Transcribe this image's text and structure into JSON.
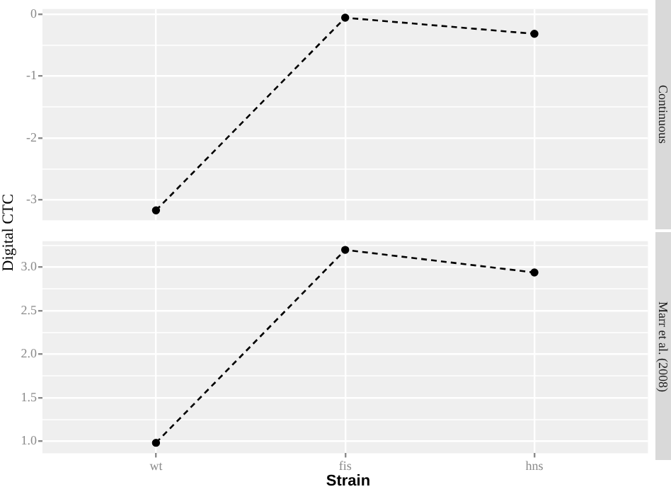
{
  "chart_data": [
    {
      "type": "line",
      "y2label": "Continuous",
      "ylabel": "Digital CTC",
      "categories": [
        null,
        null,
        null
      ],
      "series": [
        {
          "color": "#000000",
          "values": [
            -3.17,
            -0.06,
            -0.32
          ]
        }
      ],
      "ylim": [
        -3.33,
        0.08
      ],
      "yticks": [
        {
          "value": -3,
          "label": "-3"
        },
        {
          "value": -2.5,
          "label": null
        },
        {
          "value": -2,
          "label": "-2"
        },
        {
          "value": -1.5,
          "label": null
        },
        {
          "value": -1,
          "label": "-1"
        },
        {
          "value": -0.5,
          "label": null
        },
        {
          "value": 0,
          "label": "0"
        }
      ],
      "grid": true,
      "legend": false,
      "marker": "circle",
      "line_style": "dashed",
      "tick_labels": "y"
    },
    {
      "type": "line",
      "y2label": "Marr et al. (2008)",
      "xlabel": "Strain",
      "categories": [
        "wt",
        "fis",
        "hns"
      ],
      "series": [
        {
          "color": "#000000",
          "values": [
            0.98,
            3.2,
            2.94
          ]
        }
      ],
      "ylim": [
        0.86,
        3.3
      ],
      "yticks": [
        {
          "value": 1,
          "label": "1.0"
        },
        {
          "value": 1.25,
          "label": null
        },
        {
          "value": 1.5,
          "label": "1.5"
        },
        {
          "value": 1.75,
          "label": null
        },
        {
          "value": 2,
          "label": "2.0"
        },
        {
          "value": 2.25,
          "label": null
        },
        {
          "value": 2.5,
          "label": "2.5"
        },
        {
          "value": 2.75,
          "label": null
        },
        {
          "value": 3,
          "label": "3.0"
        },
        {
          "value": 3.25,
          "label": null
        }
      ],
      "grid": true,
      "legend": false,
      "marker": "circle",
      "line_style": "dashed"
    }
  ]
}
